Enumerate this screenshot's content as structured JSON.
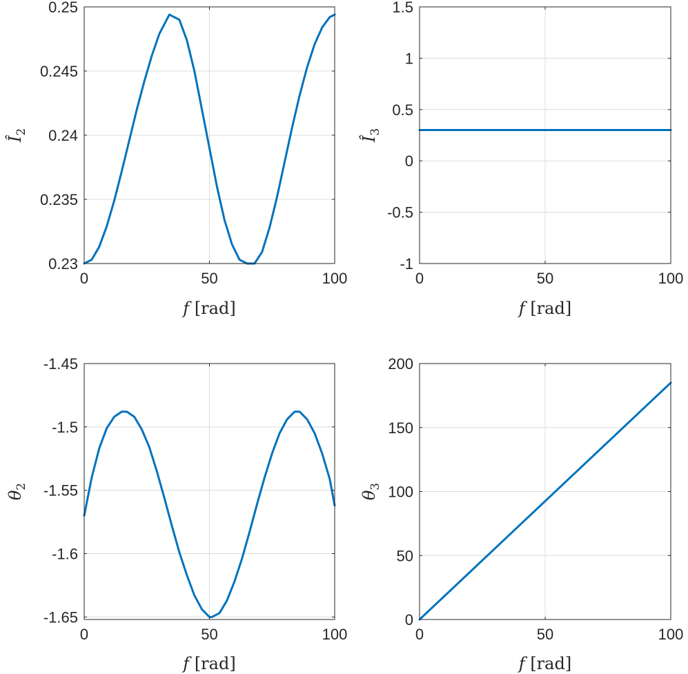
{
  "chart_data": [
    {
      "id": "i2",
      "type": "line",
      "title": "",
      "xlabel": {
        "symbol": "f",
        "unit": "[rad]"
      },
      "ylabel": {
        "symbol": "Î",
        "subscript": "2"
      },
      "xlim": [
        0,
        100
      ],
      "ylim": [
        0.23,
        0.25
      ],
      "xticks": [
        0,
        50,
        100
      ],
      "xtick_labels": [
        "0",
        "50",
        "100"
      ],
      "yticks": [
        0.23,
        0.235,
        0.24,
        0.245,
        0.25
      ],
      "ytick_labels": [
        "0.23",
        "0.235",
        "0.24",
        "0.245",
        "0.25"
      ],
      "grid": true,
      "series": [
        {
          "color": "#0072bd",
          "x": [
            0,
            3,
            6,
            9,
            12,
            15,
            18,
            21,
            24,
            27,
            30,
            34,
            38,
            41,
            44,
            47,
            50,
            53,
            56,
            59,
            62,
            65,
            68,
            71,
            74,
            77,
            80,
            83,
            86,
            89,
            92,
            95,
            98,
            100
          ],
          "y": [
            0.23,
            0.2303,
            0.2313,
            0.2329,
            0.2349,
            0.2372,
            0.2396,
            0.242,
            0.2442,
            0.2462,
            0.2479,
            0.2494,
            0.249,
            0.2474,
            0.245,
            0.242,
            0.239,
            0.236,
            0.2334,
            0.2315,
            0.2303,
            0.23,
            0.23,
            0.2309,
            0.2328,
            0.2352,
            0.2379,
            0.2406,
            0.2431,
            0.2453,
            0.2471,
            0.2484,
            0.2492,
            0.2494
          ]
        }
      ]
    },
    {
      "id": "i3",
      "type": "line",
      "title": "",
      "xlabel": {
        "symbol": "f",
        "unit": "[rad]"
      },
      "ylabel": {
        "symbol": "Î",
        "subscript": "3"
      },
      "xlim": [
        0,
        100
      ],
      "ylim": [
        -1,
        1.5
      ],
      "xticks": [
        0,
        50,
        100
      ],
      "xtick_labels": [
        "0",
        "50",
        "100"
      ],
      "yticks": [
        -1,
        -0.5,
        0,
        0.5,
        1,
        1.5
      ],
      "ytick_labels": [
        "-1",
        "-0.5",
        "0",
        "0.5",
        "1",
        "1.5"
      ],
      "grid": true,
      "series": [
        {
          "color": "#0072bd",
          "x": [
            0,
            100
          ],
          "y": [
            0.3,
            0.3
          ]
        }
      ]
    },
    {
      "id": "theta2",
      "type": "line",
      "title": "",
      "xlabel": {
        "symbol": "f",
        "unit": "[rad]"
      },
      "ylabel": {
        "symbol": "θ",
        "subscript": "2"
      },
      "xlim": [
        0,
        100
      ],
      "ylim": [
        -1.652,
        -1.45
      ],
      "xticks": [
        0,
        50,
        100
      ],
      "xtick_labels": [
        "0",
        "50",
        "100"
      ],
      "yticks": [
        -1.65,
        -1.6,
        -1.55,
        -1.5,
        -1.45
      ],
      "ytick_labels": [
        "-1.65",
        "-1.6",
        "-1.55",
        "-1.5",
        "-1.45"
      ],
      "grid": true,
      "series": [
        {
          "color": "#0072bd",
          "x": [
            0,
            3,
            6,
            9,
            12,
            15,
            17,
            20,
            23,
            26,
            29,
            32,
            35,
            38,
            41,
            44,
            47,
            50,
            51,
            54,
            57,
            60,
            63,
            66,
            69,
            72,
            75,
            78,
            81,
            84,
            86,
            89,
            92,
            95,
            98,
            100
          ],
          "y": [
            -1.57,
            -1.54,
            -1.517,
            -1.501,
            -1.492,
            -1.488,
            -1.488,
            -1.492,
            -1.502,
            -1.516,
            -1.535,
            -1.556,
            -1.578,
            -1.599,
            -1.617,
            -1.633,
            -1.644,
            -1.65,
            -1.65,
            -1.647,
            -1.637,
            -1.622,
            -1.604,
            -1.583,
            -1.561,
            -1.54,
            -1.521,
            -1.505,
            -1.494,
            -1.488,
            -1.488,
            -1.494,
            -1.505,
            -1.521,
            -1.541,
            -1.562
          ]
        }
      ]
    },
    {
      "id": "theta3",
      "type": "line",
      "title": "",
      "xlabel": {
        "symbol": "f",
        "unit": "[rad]"
      },
      "ylabel": {
        "symbol": "θ",
        "subscript": "3"
      },
      "xlim": [
        0,
        100
      ],
      "ylim": [
        0,
        200
      ],
      "xticks": [
        0,
        50,
        100
      ],
      "xtick_labels": [
        "0",
        "50",
        "100"
      ],
      "yticks": [
        0,
        50,
        100,
        150,
        200
      ],
      "ytick_labels": [
        "0",
        "50",
        "100",
        "150",
        "200"
      ],
      "grid": true,
      "series": [
        {
          "color": "#0072bd",
          "x": [
            0,
            100
          ],
          "y": [
            0,
            185
          ]
        }
      ]
    }
  ]
}
